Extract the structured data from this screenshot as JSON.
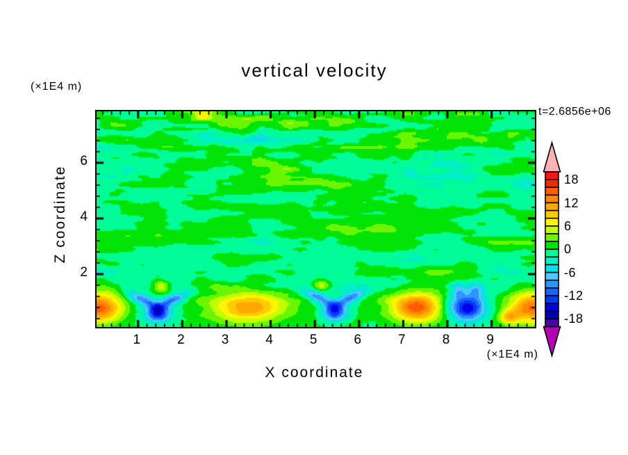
{
  "title": "vertical velocity",
  "timestamp": "t=2.6856e+06",
  "axes": {
    "x": {
      "label": "X coordinate",
      "unit": "(×1E4 m)",
      "range": [
        0.06,
        9.98
      ],
      "ticks": [
        "1",
        "2",
        "3",
        "4",
        "5",
        "6",
        "7",
        "8",
        "9"
      ],
      "tick_values": [
        1,
        2,
        3,
        4,
        5,
        6,
        7,
        8,
        9
      ],
      "minor_step": 0.2
    },
    "z": {
      "label": "Z coordinate",
      "unit": "(×1E4 m)",
      "range": [
        0.1,
        7.85
      ],
      "ticks": [
        "6",
        "4",
        "2"
      ],
      "tick_values": [
        6,
        4,
        2
      ],
      "minor_step": 0.4
    }
  },
  "chart_data": {
    "type": "heatmap",
    "quantity": "vertical velocity",
    "time_label": "t=2.6856e+06",
    "levels": {
      "min": -20,
      "max": 20,
      "step": 2
    },
    "colorbar": {
      "labels": [
        "18",
        "12",
        "6",
        "0",
        "-6",
        "-12",
        "-18"
      ],
      "label_values": [
        18,
        12,
        6,
        0,
        -6,
        -12,
        -18
      ],
      "cell_colors": [
        "#FF1212",
        "#EF2C00",
        "#FF5D00",
        "#FF8700",
        "#FFA900",
        "#FFCB00",
        "#FFF500",
        "#C3FF00",
        "#6BF500",
        "#00E405",
        "#00FC96",
        "#00EFC3",
        "#00E2E2",
        "#4FC8FF",
        "#2E96FF",
        "#1A64FF",
        "#0038FF",
        "#0000E8",
        "#0000AE",
        "#4400AA"
      ],
      "over_color": "#FFB2B2",
      "under_color": "#B400B4"
    },
    "background_noise": {
      "octaves": [
        {
          "sx": 0.75,
          "sz": 1.9,
          "amp": 1.6,
          "ox": 0.0,
          "oz": 0.0
        },
        {
          "sx": 1.5,
          "sz": 3.8,
          "amp": 1.0,
          "ox": 7.3,
          "oz": 2.1
        },
        {
          "sx": 3.0,
          "sz": 7.6,
          "amp": 0.6,
          "ox": 13.7,
          "oz": 5.2
        }
      ],
      "top_boost": 0.8,
      "top_boost_start": 4.5,
      "top_boost_span": 3.2,
      "bottom_damp_z": 1.7,
      "cube": 0.06
    },
    "plumes": [
      {
        "shape": "blob",
        "x": 0.12,
        "z": 0.8,
        "amp": 15,
        "sx": 0.5,
        "sz": 0.55
      },
      {
        "shape": "chevron",
        "x": 1.45,
        "z": 0.75,
        "amp": -14,
        "wing_amp": -10
      },
      {
        "shape": "blob",
        "x": 1.52,
        "z": 1.55,
        "amp": 7,
        "sx": 0.17,
        "sz": 0.2
      },
      {
        "shape": "blob",
        "x": 3.5,
        "z": 0.8,
        "amp": 11.5,
        "sx": 0.78,
        "sz": 0.5
      },
      {
        "shape": "chevron",
        "x": 5.45,
        "z": 0.8,
        "amp": -14,
        "wing_amp": -10
      },
      {
        "shape": "blob",
        "x": 5.15,
        "z": 1.6,
        "amp": 6.5,
        "sx": 0.19,
        "sz": 0.22
      },
      {
        "shape": "blob",
        "x": 7.3,
        "z": 0.8,
        "amp": 15,
        "sx": 0.55,
        "sz": 0.52
      },
      {
        "shape": "blob",
        "x": 8.45,
        "z": 0.78,
        "amp": -16,
        "sx": 0.42,
        "sz": 0.5
      },
      {
        "shape": "blob",
        "x": 8.25,
        "z": 1.4,
        "amp": -6,
        "sx": 0.18,
        "sz": 0.3
      },
      {
        "shape": "blob",
        "x": 8.65,
        "z": 1.4,
        "amp": -6,
        "sx": 0.18,
        "sz": 0.3
      },
      {
        "shape": "blob",
        "x": 9.4,
        "z": 0.45,
        "amp": 8,
        "sx": 0.22,
        "sz": 0.25
      },
      {
        "shape": "blob",
        "x": 9.92,
        "z": 0.8,
        "amp": 14,
        "sx": 0.5,
        "sz": 0.55
      }
    ]
  }
}
